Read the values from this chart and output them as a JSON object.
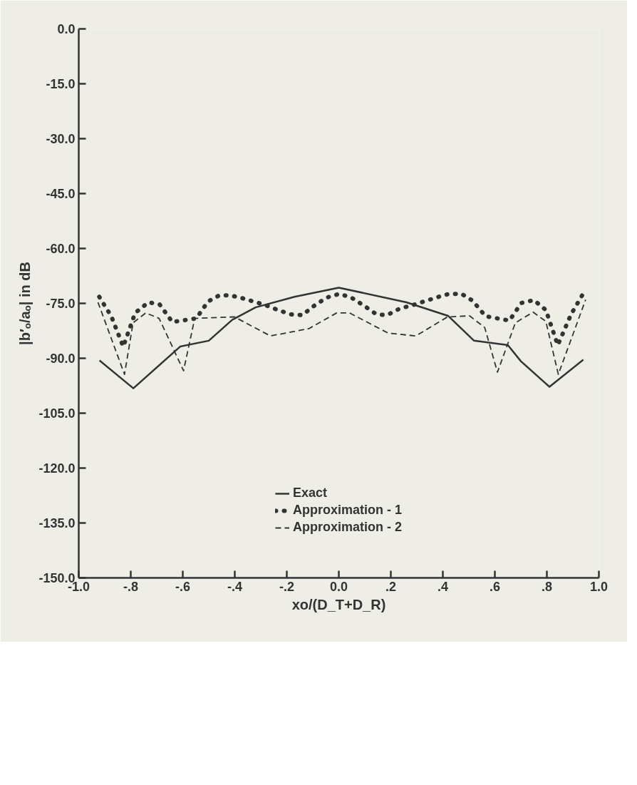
{
  "chart_data": {
    "type": "line",
    "xlabel": "xo/(D_T+D_R)",
    "ylabel": "|b′ₒ/aₒ| in dB",
    "xlim": [
      -1.0,
      1.0
    ],
    "ylim": [
      -150.0,
      0.0
    ],
    "xticks": [
      {
        "value": -1.0,
        "label": "-1.0"
      },
      {
        "value": -0.8,
        "label": "-.8"
      },
      {
        "value": -0.6,
        "label": "-.6"
      },
      {
        "value": -0.4,
        "label": "-.4"
      },
      {
        "value": -0.2,
        "label": "-.2"
      },
      {
        "value": 0.0,
        "label": "0.0"
      },
      {
        "value": 0.2,
        "label": ".2"
      },
      {
        "value": 0.4,
        "label": ".4"
      },
      {
        "value": 0.6,
        "label": ".6"
      },
      {
        "value": 0.8,
        "label": ".8"
      },
      {
        "value": 1.0,
        "label": "1.0"
      }
    ],
    "yticks": [
      {
        "value": 0,
        "label": "0.0"
      },
      {
        "value": -15,
        "label": "-15.0"
      },
      {
        "value": -30,
        "label": "-30.0"
      },
      {
        "value": -45,
        "label": "-45.0"
      },
      {
        "value": -60,
        "label": "-60.0"
      },
      {
        "value": -75,
        "label": "-75.0"
      },
      {
        "value": -90,
        "label": "-90.0"
      },
      {
        "value": -105,
        "label": "-105.0"
      },
      {
        "value": -120,
        "label": "-120.0"
      },
      {
        "value": -135,
        "label": "-135.0"
      },
      {
        "value": -150,
        "label": "-150.0"
      }
    ],
    "grid": false,
    "legend": "bottom",
    "series": [
      {
        "name": "Exact",
        "line_style": "solid",
        "color": "#333333",
        "x": [
          -0.92,
          -0.79,
          -0.61,
          -0.5,
          -0.41,
          -0.32,
          -0.17,
          0.0,
          0.26,
          0.42,
          0.52,
          0.65,
          0.7,
          0.81,
          0.94
        ],
        "values": [
          -90.6,
          -98.2,
          -86.8,
          -85.2,
          -79.5,
          -76.1,
          -73.2,
          -70.7,
          -74.7,
          -78.4,
          -85.2,
          -86.4,
          -90.8,
          -97.8,
          -90.4
        ]
      },
      {
        "name": "Approximation - 1",
        "line_style": "dotted",
        "color": "#333333",
        "x": [
          -0.921,
          -0.875,
          -0.829,
          -0.783,
          -0.732,
          -0.689,
          -0.64,
          -0.548,
          -0.503,
          -0.459,
          -0.418,
          -0.37,
          -0.281,
          -0.235,
          -0.184,
          -0.14,
          -0.092,
          -0.046,
          0.003,
          0.048,
          0.094,
          0.145,
          0.186,
          0.235,
          0.283,
          0.375,
          0.423,
          0.472,
          0.515,
          0.564,
          0.656,
          0.702,
          0.75,
          0.796,
          0.842,
          0.893,
          0.939
        ],
        "values": [
          -73.2,
          -78.5,
          -86.8,
          -77.6,
          -74.7,
          -75.3,
          -80.1,
          -79.1,
          -74.5,
          -72.8,
          -72.8,
          -73.6,
          -75.5,
          -76.8,
          -78.0,
          -78.2,
          -75.5,
          -73.4,
          -72.4,
          -73.4,
          -75.5,
          -78.0,
          -78.2,
          -76.4,
          -75.5,
          -73.4,
          -72.4,
          -72.4,
          -74.3,
          -78.5,
          -79.7,
          -74.9,
          -74.1,
          -76.8,
          -86.4,
          -78.0,
          -72.4
        ]
      },
      {
        "name": "Approximation - 2",
        "line_style": "dashed",
        "color": "#333333",
        "x": [
          -0.926,
          -0.824,
          -0.791,
          -0.742,
          -0.691,
          -0.597,
          -0.554,
          -0.401,
          -0.263,
          -0.115,
          -0.008,
          0.041,
          0.189,
          0.296,
          0.418,
          0.503,
          0.561,
          0.61,
          0.679,
          0.747,
          0.796,
          0.844,
          0.949
        ],
        "values": [
          -74.7,
          -94.4,
          -80.3,
          -77.6,
          -79.1,
          -93.4,
          -79.1,
          -78.7,
          -83.9,
          -81.9,
          -77.6,
          -77.6,
          -83.1,
          -83.9,
          -78.7,
          -78.4,
          -81.6,
          -93.8,
          -80.3,
          -77.4,
          -79.9,
          -94.4,
          -74.0
        ]
      }
    ]
  }
}
